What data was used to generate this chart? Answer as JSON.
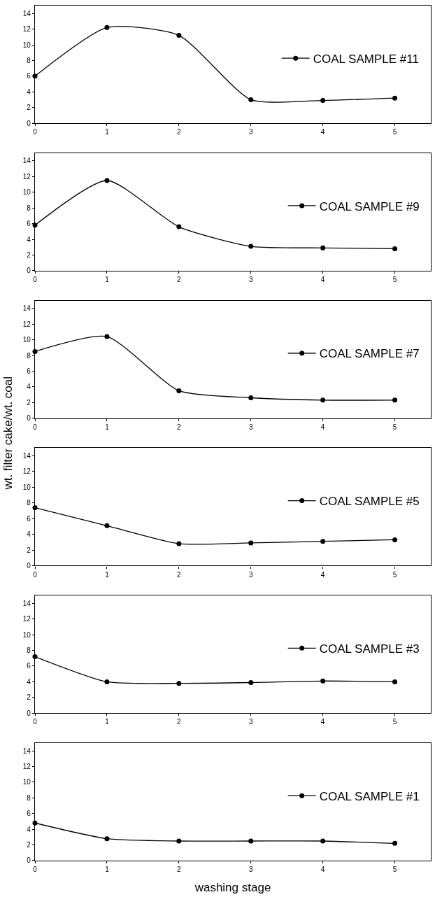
{
  "chart_data": [
    {
      "type": "line",
      "x": [
        0,
        1,
        2,
        3,
        4,
        5
      ],
      "series": [
        {
          "name": "COAL SAMPLE #11",
          "color": "#000000",
          "values": [
            6.0,
            12.2,
            11.2,
            3.0,
            2.9,
            3.2
          ]
        }
      ],
      "xlim": [
        0,
        5.5
      ],
      "ylim": [
        0,
        15
      ],
      "xticks": [
        0,
        1,
        2,
        3,
        4,
        5
      ],
      "yticks": [
        0,
        2,
        4,
        6,
        8,
        10,
        12,
        14
      ],
      "marker": "circle",
      "line_style": "solid",
      "legend": "right",
      "grid": false
    },
    {
      "type": "line",
      "x": [
        0,
        1,
        2,
        3,
        4,
        5
      ],
      "series": [
        {
          "name": "COAL SAMPLE #9",
          "color": "#000000",
          "values": [
            5.8,
            11.5,
            5.6,
            3.1,
            2.9,
            2.8
          ]
        }
      ],
      "xlim": [
        0,
        5.5
      ],
      "ylim": [
        0,
        15
      ],
      "xticks": [
        0,
        1,
        2,
        3,
        4,
        5
      ],
      "yticks": [
        0,
        2,
        4,
        6,
        8,
        10,
        12,
        14
      ],
      "marker": "circle",
      "line_style": "solid",
      "legend": "right",
      "grid": false
    },
    {
      "type": "line",
      "x": [
        0,
        1,
        2,
        3,
        4,
        5
      ],
      "series": [
        {
          "name": "COAL SAMPLE #7",
          "color": "#000000",
          "values": [
            8.5,
            10.4,
            3.5,
            2.6,
            2.3,
            2.3
          ]
        }
      ],
      "xlim": [
        0,
        5.5
      ],
      "ylim": [
        0,
        15
      ],
      "xticks": [
        0,
        1,
        2,
        3,
        4,
        5
      ],
      "yticks": [
        0,
        2,
        4,
        6,
        8,
        10,
        12,
        14
      ],
      "marker": "circle",
      "line_style": "solid",
      "legend": "right",
      "grid": false,
      "ylabel": "wt. filter cake/wt. coal"
    },
    {
      "type": "line",
      "x": [
        0,
        1,
        2,
        3,
        4,
        5
      ],
      "series": [
        {
          "name": "COAL SAMPLE #5",
          "color": "#000000",
          "values": [
            7.4,
            5.1,
            2.8,
            2.9,
            3.1,
            3.3
          ]
        }
      ],
      "xlim": [
        0,
        5.5
      ],
      "ylim": [
        0,
        15
      ],
      "xticks": [
        0,
        1,
        2,
        3,
        4,
        5
      ],
      "yticks": [
        0,
        2,
        4,
        6,
        8,
        10,
        12,
        14
      ],
      "marker": "circle",
      "line_style": "solid",
      "legend": "right",
      "grid": false
    },
    {
      "type": "line",
      "x": [
        0,
        1,
        2,
        3,
        4,
        5
      ],
      "series": [
        {
          "name": "COAL SAMPLE #3",
          "color": "#000000",
          "values": [
            7.2,
            4.0,
            3.8,
            3.9,
            4.1,
            4.0
          ]
        }
      ],
      "xlim": [
        0,
        5.5
      ],
      "ylim": [
        0,
        15
      ],
      "xticks": [
        0,
        1,
        2,
        3,
        4,
        5
      ],
      "yticks": [
        0,
        2,
        4,
        6,
        8,
        10,
        12,
        14
      ],
      "marker": "circle",
      "line_style": "solid",
      "legend": "right",
      "grid": false
    },
    {
      "type": "line",
      "x": [
        0,
        1,
        2,
        3,
        4,
        5
      ],
      "series": [
        {
          "name": "COAL SAMPLE #1",
          "color": "#000000",
          "values": [
            4.8,
            2.8,
            2.5,
            2.5,
            2.5,
            2.2
          ]
        }
      ],
      "xlim": [
        0,
        5.5
      ],
      "ylim": [
        0,
        15
      ],
      "xticks": [
        0,
        1,
        2,
        3,
        4,
        5
      ],
      "yticks": [
        0,
        2,
        4,
        6,
        8,
        10,
        12,
        14
      ],
      "marker": "circle",
      "line_style": "solid",
      "legend": "right",
      "grid": false,
      "xlabel": "washing stage"
    }
  ]
}
